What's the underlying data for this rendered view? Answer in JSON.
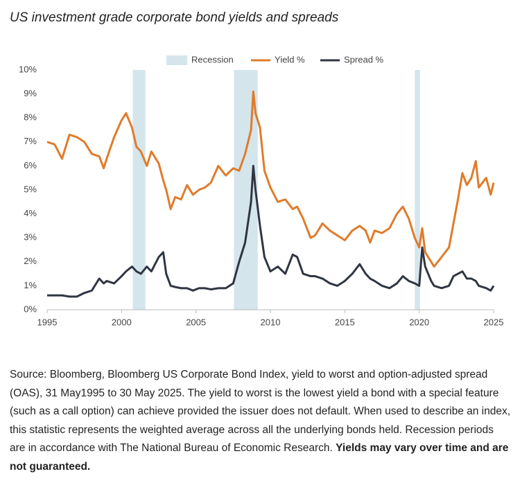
{
  "chart_data": {
    "type": "line",
    "title": "US investment grade corporate bond yields and spreads",
    "xlim": [
      1995,
      2025
    ],
    "xticks": [
      1995,
      2000,
      2005,
      2010,
      2015,
      2020,
      2025
    ],
    "ylim": [
      0,
      10
    ],
    "yticks": [
      {
        "value": 0,
        "label": "0%"
      },
      {
        "value": 1,
        "label": "1%"
      },
      {
        "value": 2,
        "label": "2%"
      },
      {
        "value": 3,
        "label": "3%"
      },
      {
        "value": 4,
        "label": "4%"
      },
      {
        "value": 5,
        "label": "5%"
      },
      {
        "value": 6,
        "label": "6%"
      },
      {
        "value": 7,
        "label": "7%"
      },
      {
        "value": 8,
        "label": "8%"
      },
      {
        "value": 9,
        "label": "9%"
      },
      {
        "value": 10,
        "label": "10%"
      }
    ],
    "grid": false,
    "recession_label": "Recession",
    "recession_color": "#d5e5ec",
    "recessions": [
      {
        "start": 2000.75,
        "end": 2001.6
      },
      {
        "start": 2007.55,
        "end": 2009.15
      },
      {
        "start": 2019.7,
        "end": 2020.05
      }
    ],
    "x": [
      1995,
      1995.5,
      1996,
      1996.5,
      1997,
      1997.5,
      1998,
      1998.5,
      1998.8,
      1999,
      1999.5,
      2000,
      2000.3,
      2000.7,
      2001,
      2001.3,
      2001.7,
      2002,
      2002.5,
      2002.8,
      2003,
      2003.3,
      2003.6,
      2004,
      2004.4,
      2004.8,
      2005.2,
      2005.6,
      2006,
      2006.5,
      2007,
      2007.5,
      2007.9,
      2008.3,
      2008.7,
      2008.85,
      2009,
      2009.3,
      2009.6,
      2010,
      2010.5,
      2011,
      2011.5,
      2011.8,
      2012.2,
      2012.7,
      2013,
      2013.5,
      2014,
      2014.5,
      2015,
      2015.5,
      2016,
      2016.4,
      2016.7,
      2017,
      2017.5,
      2018,
      2018.5,
      2018.9,
      2019.3,
      2019.7,
      2020,
      2020.2,
      2020.4,
      2020.8,
      2021,
      2021.5,
      2022,
      2022.3,
      2022.6,
      2022.9,
      2023.2,
      2023.5,
      2023.8,
      2024,
      2024.5,
      2024.8,
      2025
    ],
    "series": [
      {
        "name": "Yield %",
        "color": "#e07b2a",
        "values": [
          7.0,
          6.9,
          6.3,
          7.3,
          7.2,
          7.0,
          6.5,
          6.4,
          5.9,
          6.3,
          7.2,
          7.9,
          8.2,
          7.6,
          6.8,
          6.6,
          6.0,
          6.6,
          6.1,
          5.4,
          5.0,
          4.2,
          4.7,
          4.6,
          5.2,
          4.8,
          5.0,
          5.1,
          5.3,
          6.0,
          5.6,
          5.9,
          5.8,
          6.5,
          7.5,
          9.1,
          8.2,
          7.6,
          5.8,
          5.1,
          4.5,
          4.6,
          4.2,
          4.3,
          3.8,
          3.0,
          3.1,
          3.6,
          3.3,
          3.1,
          2.9,
          3.3,
          3.5,
          3.3,
          2.8,
          3.3,
          3.2,
          3.4,
          4.0,
          4.3,
          3.8,
          3.0,
          2.6,
          3.4,
          2.4,
          2.0,
          1.8,
          2.2,
          2.6,
          3.6,
          4.6,
          5.7,
          5.2,
          5.5,
          6.2,
          5.1,
          5.5,
          4.8,
          5.3
        ]
      },
      {
        "name": "Spread %",
        "color": "#2f3542",
        "values": [
          0.6,
          0.6,
          0.6,
          0.55,
          0.55,
          0.7,
          0.8,
          1.3,
          1.1,
          1.2,
          1.1,
          1.4,
          1.6,
          1.8,
          1.6,
          1.5,
          1.8,
          1.6,
          2.2,
          2.4,
          1.5,
          1.0,
          0.95,
          0.9,
          0.9,
          0.8,
          0.9,
          0.9,
          0.85,
          0.9,
          0.9,
          1.1,
          2.0,
          2.8,
          4.5,
          6.0,
          5.0,
          3.5,
          2.2,
          1.6,
          1.8,
          1.5,
          2.3,
          2.2,
          1.5,
          1.4,
          1.4,
          1.3,
          1.1,
          1.0,
          1.2,
          1.5,
          1.9,
          1.5,
          1.3,
          1.2,
          1.0,
          0.9,
          1.1,
          1.4,
          1.2,
          1.1,
          1.0,
          2.6,
          1.8,
          1.2,
          1.0,
          0.9,
          1.0,
          1.4,
          1.5,
          1.6,
          1.3,
          1.3,
          1.2,
          1.0,
          0.9,
          0.8,
          1.0
        ]
      }
    ],
    "source": "Source: Bloomberg, Bloomberg US Corporate Bond Index, yield to worst and option-adjusted spread (OAS), 31 May1995 to 30 May 2025. The yield to worst is the lowest yield a bond with a special feature (such as a call option) can achieve provided the issuer does not default. When used to describe an index, this statistic represents the weighted average across all the underlying bonds held. Recession periods are in accordance with The National Bureau of Economic Research.",
    "source_bold": "Yields may vary over time and are not guaranteed."
  }
}
